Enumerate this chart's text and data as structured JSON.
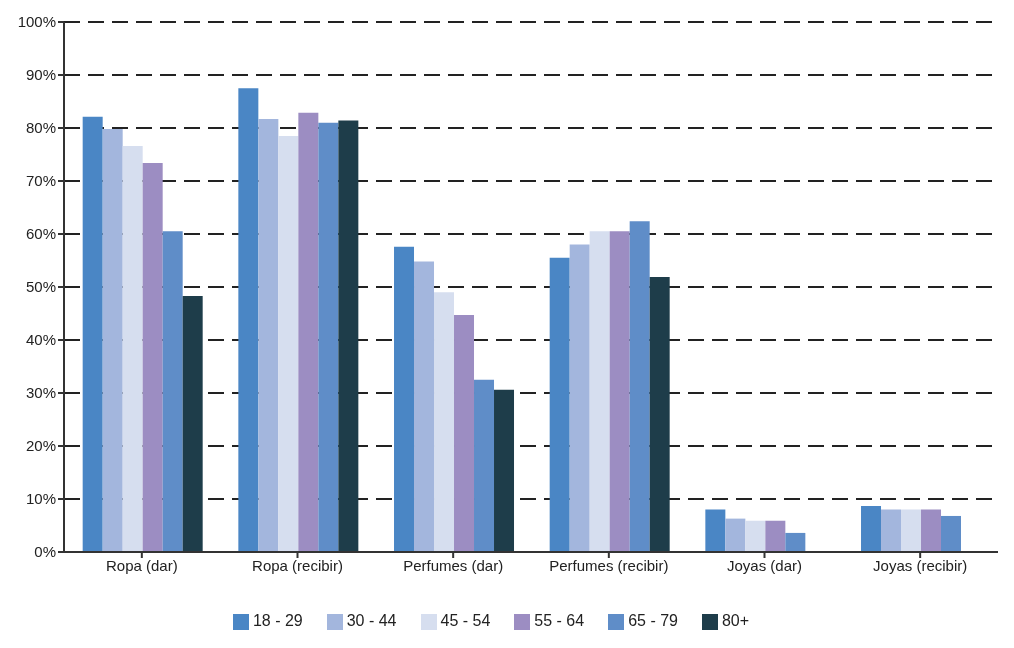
{
  "chart_data": {
    "type": "bar",
    "categories": [
      "Ropa (dar)",
      "Ropa (recibir)",
      "Perfumes (dar)",
      "Perfumes (recibir)",
      "Joyas (dar)",
      "Joyas (recibir)"
    ],
    "series": [
      {
        "name": "18 - 29",
        "color": "#4a86c5",
        "values": [
          82.1,
          87.5,
          57.6,
          55.5,
          8,
          8.7
        ]
      },
      {
        "name": "30 - 44",
        "color": "#a3b6dd",
        "values": [
          79.8,
          81.7,
          54.8,
          58,
          6.3,
          8
        ]
      },
      {
        "name": "45 - 54",
        "color": "#d6deef",
        "values": [
          76.6,
          78.5,
          49,
          60.5,
          5.9,
          8
        ]
      },
      {
        "name": "55 - 64",
        "color": "#9c8dc2",
        "values": [
          73.4,
          82.9,
          44.7,
          60.5,
          5.9,
          8
        ]
      },
      {
        "name": "65 - 79",
        "color": "#5f8dc8",
        "values": [
          60.5,
          81,
          32.5,
          62.4,
          3.6,
          6.8
        ]
      },
      {
        "name": "80+",
        "color": "#1e3d4a",
        "values": [
          48.3,
          81.4,
          30.6,
          51.9,
          null,
          null
        ]
      }
    ],
    "ylim": [
      0,
      100
    ],
    "yticks": [
      {
        "value": 0,
        "label": "0%"
      },
      {
        "value": 10,
        "label": "10%"
      },
      {
        "value": 20,
        "label": "20%"
      },
      {
        "value": 30,
        "label": "30%"
      },
      {
        "value": 40,
        "label": "40%"
      },
      {
        "value": 50,
        "label": "50%"
      },
      {
        "value": 60,
        "label": "60%"
      },
      {
        "value": 70,
        "label": "70%"
      },
      {
        "value": 80,
        "label": "80%"
      },
      {
        "value": 90,
        "label": "90%"
      },
      {
        "value": 100,
        "label": "100%"
      }
    ],
    "grid": "y",
    "legend": "bottom"
  }
}
